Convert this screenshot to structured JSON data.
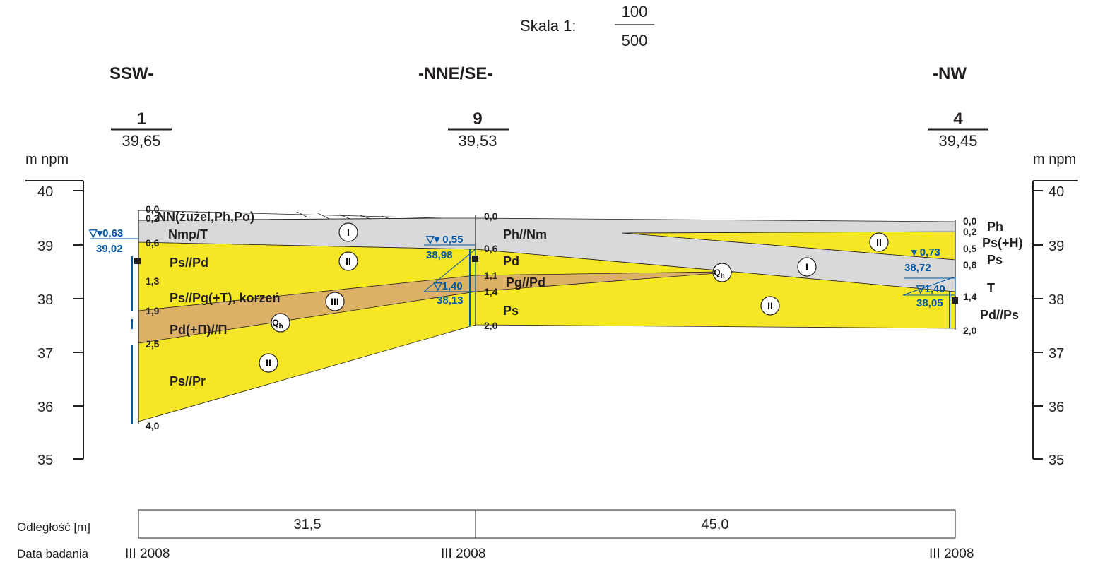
{
  "scale": {
    "prefix": "Skala 1:",
    "numerator": "100",
    "denominator": "500"
  },
  "directions": {
    "left": "SSW-",
    "middle": "-NNE/SE-",
    "right": "-NW"
  },
  "axis": {
    "unit_left": "m npm",
    "unit_right": "m npm",
    "ticks": [
      "40",
      "39",
      "38",
      "37",
      "36",
      "35"
    ]
  },
  "boreholes": [
    {
      "number": "1",
      "elevation": "39,65",
      "date": "III 2008",
      "depths": [
        "0,0",
        "0,2",
        "0,6",
        "1,3",
        "1,9",
        "2,5",
        "4,0"
      ],
      "water_depth": "0,63",
      "water_elev": "39,02"
    },
    {
      "number": "9",
      "elevation": "39,53",
      "date": "III 2008",
      "depths": [
        "0,0",
        "0,6",
        "1,1",
        "1,4",
        "2,0"
      ],
      "water_depth": "0,55",
      "water_elev": "38,98",
      "water_depth2": "1,40",
      "water_elev2": "38,13"
    },
    {
      "number": "4",
      "elevation": "39,45",
      "date": "III 2008",
      "depths": [
        "0,0",
        "0,2",
        "0,5",
        "0,8",
        "1,4",
        "2,0"
      ],
      "water_depth": "0,73",
      "water_elev": "38,72",
      "water_depth2": "1,40",
      "water_elev2": "38,05"
    }
  ],
  "soil_labels": {
    "b1": [
      "NN(żużel,Ph,Po)",
      "Nmp/T",
      "Ps//Pd",
      "Ps//Pg(+T), korzeń",
      "Pd(+Π)//Π",
      "Ps//Pr"
    ],
    "b9": [
      "Ph//Nm",
      "Pd",
      "Pg//Pd",
      "Ps"
    ],
    "b4": [
      "Ph",
      "Ps(+H)",
      "Ps",
      "T",
      "Pd//Ps"
    ]
  },
  "layer_codes": {
    "I": "I",
    "II": "II",
    "III": "III",
    "Q": "Q",
    "Q_sub": "h"
  },
  "distance": {
    "label": "Odległość [m]",
    "values": [
      "31,5",
      "45,0"
    ]
  },
  "date_label": "Data badania",
  "colors": {
    "yellow": "#f5e726",
    "brown": "#ddb068",
    "gray": "#d9d9d9",
    "water": "#0057a8",
    "ink": "#231f20"
  }
}
